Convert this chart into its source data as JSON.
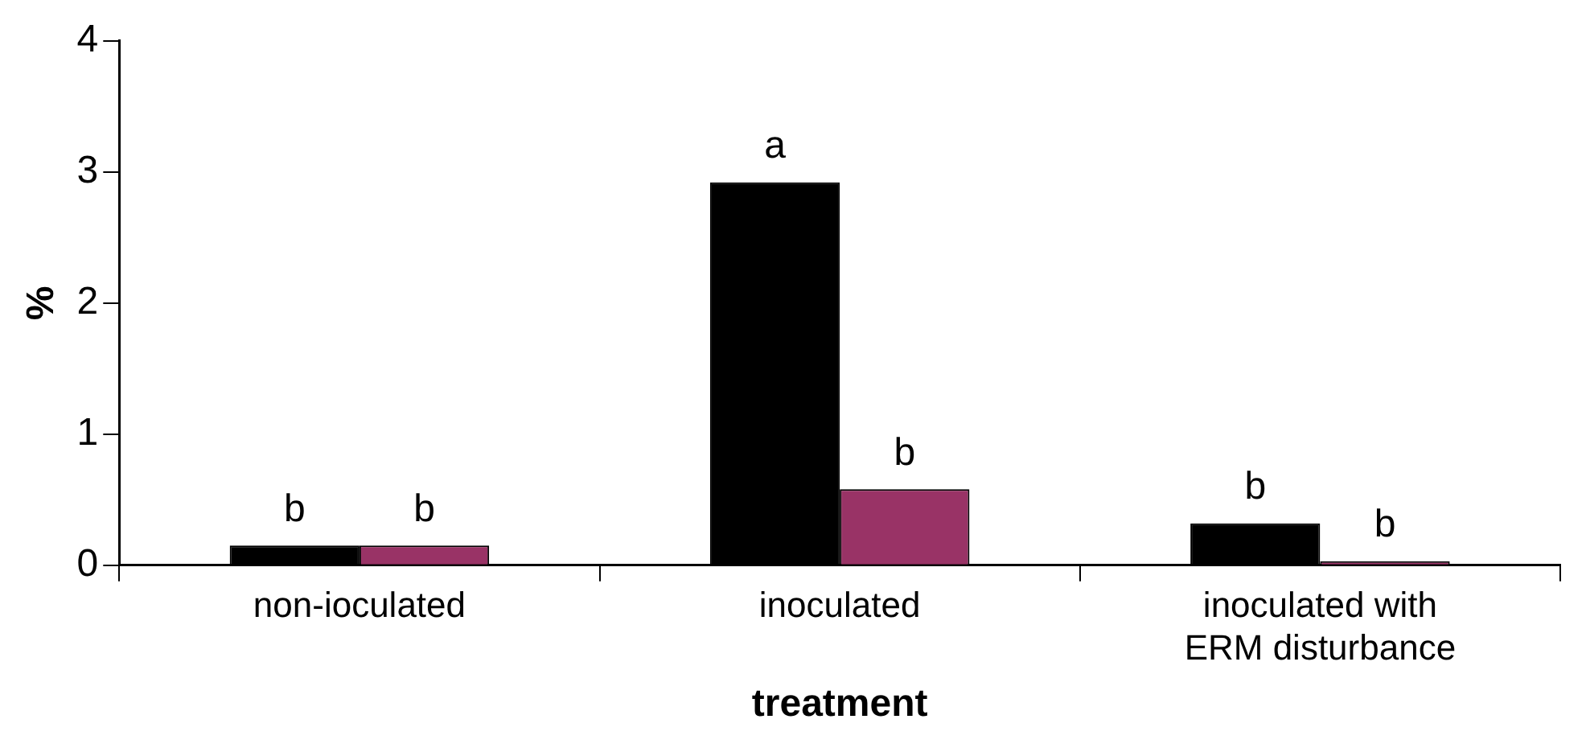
{
  "chart_data": {
    "type": "bar",
    "xlabel": "treatment",
    "ylabel": "%",
    "categories": [
      "non-ioculated",
      "inoculated",
      "inoculated with ERM disturbance"
    ],
    "series": [
      {
        "color": "#000000",
        "values": [
          0.15,
          2.92,
          0.32
        ],
        "value_labels": [
          "b",
          "a",
          "b"
        ]
      },
      {
        "color": "#993366",
        "values": [
          0.15,
          0.58,
          0.03
        ],
        "value_labels": [
          "b",
          "b",
          "b"
        ]
      }
    ],
    "ylim": [
      0,
      4
    ],
    "yticks": [
      0,
      1,
      2,
      3,
      4
    ],
    "grid": false,
    "legend": false
  }
}
